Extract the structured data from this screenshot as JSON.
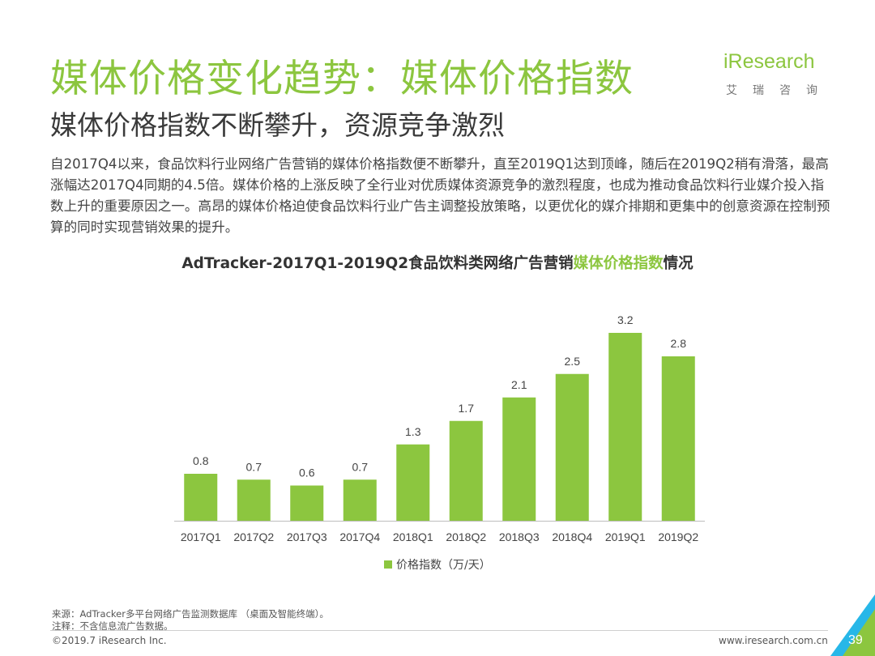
{
  "page": {
    "title": "媒体价格变化趋势：媒体价格指数",
    "subtitle": "媒体价格指数不断攀升，资源竞争激烈",
    "logo": "iResearch",
    "logo_sub": "艾瑞咨询",
    "body": "自2017Q4以来，食品饮料行业网络广告营销的媒体价格指数便不断攀升，直至2019Q1达到顶峰，随后在2019Q2稍有滑落，最高涨幅达2017Q4同期的4.5倍。媒体价格的上涨反映了全行业对优质媒体资源竞争的激烈程度，也成为推动食品饮料行业媒介投入指数上升的重要原因之一。高昂的媒体价格迫使食品饮料行业广告主调整投放策略，以更优化的媒介排期和更集中的创意资源在控制预算的同时实现营销效果的提升。",
    "chart_title_prefix": "AdTracker-2017Q1-2019Q2食品饮料类网络广告营销",
    "chart_title_highlight": "媒体价格指数",
    "chart_title_suffix": "情况",
    "source": "来源：AdTracker多平台网络广告监测数据库 （桌面及智能终端）。",
    "note": "注释：不含信息流广告数据。",
    "copyright": "©2019.7 iResearch Inc.",
    "url": "www.iresearch.com.cn",
    "page_number": "39",
    "accent_color": "#8cc63f"
  },
  "chart_data": {
    "type": "bar",
    "categories": [
      "2017Q1",
      "2017Q2",
      "2017Q3",
      "2017Q4",
      "2018Q1",
      "2018Q2",
      "2018Q3",
      "2018Q4",
      "2019Q1",
      "2019Q2"
    ],
    "series": [
      {
        "name": "价格指数（万/天）",
        "values": [
          0.8,
          0.7,
          0.6,
          0.7,
          1.3,
          1.7,
          2.1,
          2.5,
          3.2,
          2.8
        ],
        "color": "#8cc63f"
      }
    ],
    "data_labels": [
      "0.8",
      "0.7",
      "0.6",
      "0.7",
      "1.3",
      "1.7",
      "2.1",
      "2.5",
      "3.2",
      "2.8"
    ],
    "ylim": [
      0,
      3.2
    ],
    "grid": false,
    "legend": "bottom-center"
  }
}
